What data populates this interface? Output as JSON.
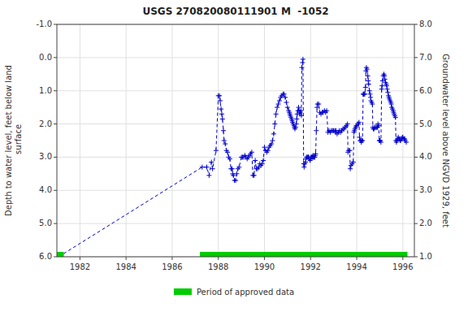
{
  "chart_data": {
    "type": "line",
    "title": "USGS 270820080111901 M  -1052",
    "y_label": "Depth to water level, feet below land\n surface",
    "y2_label": "Groundwater level above NGVD 1929, feet",
    "xlim": [
      1981.0,
      1996.5
    ],
    "xticks": [
      1982,
      1984,
      1986,
      1988,
      1990,
      1992,
      1994,
      1996
    ],
    "ylim": [
      6.0,
      -1.0
    ],
    "yticks": [
      {
        "value": -1.0,
        "label": "-1.0"
      },
      {
        "value": 0.0,
        "label": "0.0"
      },
      {
        "value": 1.0,
        "label": "1.0"
      },
      {
        "value": 2.0,
        "label": "2.0"
      },
      {
        "value": 3.0,
        "label": "3.0"
      },
      {
        "value": 4.0,
        "label": "4.0"
      },
      {
        "value": 5.0,
        "label": "5.0"
      },
      {
        "value": 6.0,
        "label": "6.0"
      }
    ],
    "y2lim": [
      1.0,
      8.0
    ],
    "y2ticks": [
      {
        "value": 1.0,
        "label": "1.0"
      },
      {
        "value": 2.0,
        "label": "2.0"
      },
      {
        "value": 3.0,
        "label": "3.0"
      },
      {
        "value": 4.0,
        "label": "4.0"
      },
      {
        "value": 5.0,
        "label": "5.0"
      },
      {
        "value": 6.0,
        "label": "6.0"
      },
      {
        "value": 7.0,
        "label": "7.0"
      },
      {
        "value": 8.0,
        "label": "8.0"
      }
    ],
    "grid": true,
    "x": [
      1981.08,
      1987.3,
      1987.5,
      1987.6,
      1987.7,
      1987.75,
      1987.9,
      1988.0,
      1988.05,
      1988.08,
      1988.12,
      1988.15,
      1988.18,
      1988.22,
      1988.25,
      1988.3,
      1988.35,
      1988.4,
      1988.45,
      1988.5,
      1988.55,
      1988.6,
      1988.62,
      1988.65,
      1988.7,
      1988.75,
      1988.8,
      1988.85,
      1988.9,
      1989.0,
      1989.05,
      1989.1,
      1989.15,
      1989.2,
      1989.25,
      1989.3,
      1989.35,
      1989.4,
      1989.45,
      1989.5,
      1989.55,
      1989.6,
      1989.65,
      1989.7,
      1989.75,
      1989.8,
      1989.85,
      1989.9,
      1989.95,
      1990.0,
      1990.05,
      1990.1,
      1990.15,
      1990.2,
      1990.25,
      1990.3,
      1990.35,
      1990.4,
      1990.45,
      1990.5,
      1990.55,
      1990.6,
      1990.65,
      1990.7,
      1990.75,
      1990.8,
      1990.85,
      1990.9,
      1990.95,
      1991.0,
      1991.05,
      1991.08,
      1991.1,
      1991.12,
      1991.15,
      1991.18,
      1991.2,
      1991.22,
      1991.25,
      1991.28,
      1991.3,
      1991.32,
      1991.35,
      1991.38,
      1991.4,
      1991.42,
      1991.45,
      1991.48,
      1991.5,
      1991.52,
      1991.55,
      1991.58,
      1991.6,
      1991.62,
      1991.65,
      1991.67,
      1991.7,
      1991.72,
      1991.75,
      1991.78,
      1991.8,
      1991.82,
      1991.85,
      1991.88,
      1991.9,
      1991.92,
      1991.95,
      1991.98,
      1992.0,
      1992.02,
      1992.05,
      1992.08,
      1992.1,
      1992.12,
      1992.15,
      1992.18,
      1992.2,
      1992.22,
      1992.25,
      1992.28,
      1992.3,
      1992.35,
      1992.4,
      1992.45,
      1992.5,
      1992.55,
      1992.6,
      1992.65,
      1992.7,
      1992.75,
      1992.8,
      1992.85,
      1992.9,
      1992.95,
      1993.0,
      1993.05,
      1993.08,
      1993.1,
      1993.15,
      1993.2,
      1993.25,
      1993.3,
      1993.35,
      1993.4,
      1993.45,
      1993.5,
      1993.55,
      1993.6,
      1993.62,
      1993.65,
      1993.7,
      1993.72,
      1993.75,
      1993.8,
      1993.85,
      1993.88,
      1993.9,
      1993.92,
      1993.95,
      1993.98,
      1994.0,
      1994.05,
      1994.08,
      1994.1,
      1994.12,
      1994.15,
      1994.18,
      1994.2,
      1994.22,
      1994.25,
      1994.28,
      1994.3,
      1994.32,
      1994.35,
      1994.38,
      1994.4,
      1994.42,
      1994.45,
      1994.48,
      1994.5,
      1994.52,
      1994.55,
      1994.58,
      1994.6,
      1994.62,
      1994.65,
      1994.68,
      1994.7,
      1994.72,
      1994.75,
      1994.78,
      1994.8,
      1994.85,
      1994.88,
      1994.9,
      1994.92,
      1994.95,
      1994.98,
      1995.0,
      1995.02,
      1995.05,
      1995.08,
      1995.1,
      1995.12,
      1995.15,
      1995.18,
      1995.2,
      1995.22,
      1995.25,
      1995.28,
      1995.3,
      1995.32,
      1995.35,
      1995.38,
      1995.4,
      1995.42,
      1995.45,
      1995.48,
      1995.5,
      1995.52,
      1995.55,
      1995.58,
      1995.6,
      1995.62,
      1995.65,
      1995.68,
      1995.7,
      1995.72,
      1995.75,
      1995.78,
      1995.8,
      1995.85,
      1995.88,
      1995.9,
      1995.95,
      1995.98,
      1996.0,
      1996.05,
      1996.08,
      1996.1,
      1996.15
    ],
    "series": [
      {
        "color": "#0000cc",
        "marker": "plus",
        "line_style": "dashed",
        "values": [
          6.0,
          3.3,
          3.3,
          3.55,
          3.15,
          3.35,
          2.8,
          1.15,
          1.15,
          1.3,
          1.55,
          1.7,
          1.85,
          2.2,
          2.5,
          2.6,
          2.8,
          2.85,
          3.0,
          3.05,
          3.35,
          3.35,
          3.5,
          3.55,
          3.7,
          3.7,
          3.5,
          3.35,
          3.3,
          3.0,
          3.0,
          3.0,
          2.95,
          3.0,
          3.05,
          3.0,
          2.95,
          2.9,
          2.85,
          3.55,
          3.55,
          3.1,
          3.35,
          3.35,
          3.3,
          3.2,
          3.25,
          3.2,
          3.1,
          2.7,
          2.8,
          2.85,
          2.8,
          2.7,
          2.65,
          2.6,
          2.5,
          2.3,
          2.0,
          1.7,
          1.5,
          1.4,
          1.3,
          1.2,
          1.15,
          1.1,
          1.1,
          1.2,
          1.35,
          1.5,
          1.6,
          1.65,
          1.7,
          1.75,
          1.8,
          1.85,
          1.9,
          1.95,
          2.0,
          2.05,
          2.1,
          2.15,
          2.1,
          2.0,
          1.85,
          1.7,
          1.6,
          1.5,
          1.6,
          1.7,
          1.65,
          1.6,
          1.75,
          0.3,
          0.15,
          0.05,
          3.2,
          3.3,
          3.2,
          3.15,
          3.05,
          3.0,
          3.0,
          3.0,
          3.0,
          3.0,
          3.05,
          3.1,
          3.05,
          3.0,
          3.0,
          3.0,
          2.95,
          3.0,
          3.0,
          3.0,
          2.95,
          2.9,
          2.2,
          1.5,
          1.4,
          1.4,
          1.65,
          1.7,
          1.65,
          1.65,
          1.6,
          1.65,
          1.6,
          2.25,
          2.2,
          2.25,
          2.2,
          2.2,
          2.2,
          2.2,
          2.25,
          2.2,
          2.3,
          2.25,
          2.2,
          2.25,
          2.2,
          2.15,
          2.15,
          2.1,
          2.05,
          2.0,
          2.85,
          2.8,
          2.8,
          3.35,
          3.25,
          3.2,
          3.15,
          2.25,
          2.2,
          2.15,
          2.1,
          2.05,
          2.05,
          2.0,
          2.0,
          1.95,
          2.4,
          2.5,
          2.5,
          2.55,
          2.5,
          2.5,
          1.1,
          1.1,
          1.1,
          1.1,
          0.9,
          0.4,
          0.3,
          0.35,
          0.55,
          0.7,
          0.8,
          1.0,
          1.1,
          1.2,
          1.3,
          1.35,
          1.4,
          2.1,
          2.15,
          2.15,
          2.1,
          2.1,
          2.1,
          2.1,
          2.1,
          2.0,
          2.05,
          2.5,
          2.5,
          2.5,
          2.55,
          0.95,
          0.85,
          0.7,
          0.55,
          0.5,
          0.55,
          0.65,
          0.75,
          0.8,
          0.85,
          0.95,
          1.05,
          1.15,
          1.2,
          1.25,
          1.3,
          1.35,
          1.4,
          1.5,
          1.55,
          1.6,
          1.65,
          1.7,
          1.75,
          1.8,
          2.5,
          2.55,
          2.5,
          2.45,
          2.4,
          2.45,
          2.5,
          2.5,
          2.45,
          2.4,
          2.4,
          2.45,
          2.45,
          2.5,
          2.55
        ]
      },
      {
        "name": "Period of approved data",
        "type": "span",
        "color": "#00cc00",
        "values": [
          [
            1981.0,
            1981.3
          ],
          [
            1987.2,
            1996.2
          ]
        ]
      }
    ]
  }
}
